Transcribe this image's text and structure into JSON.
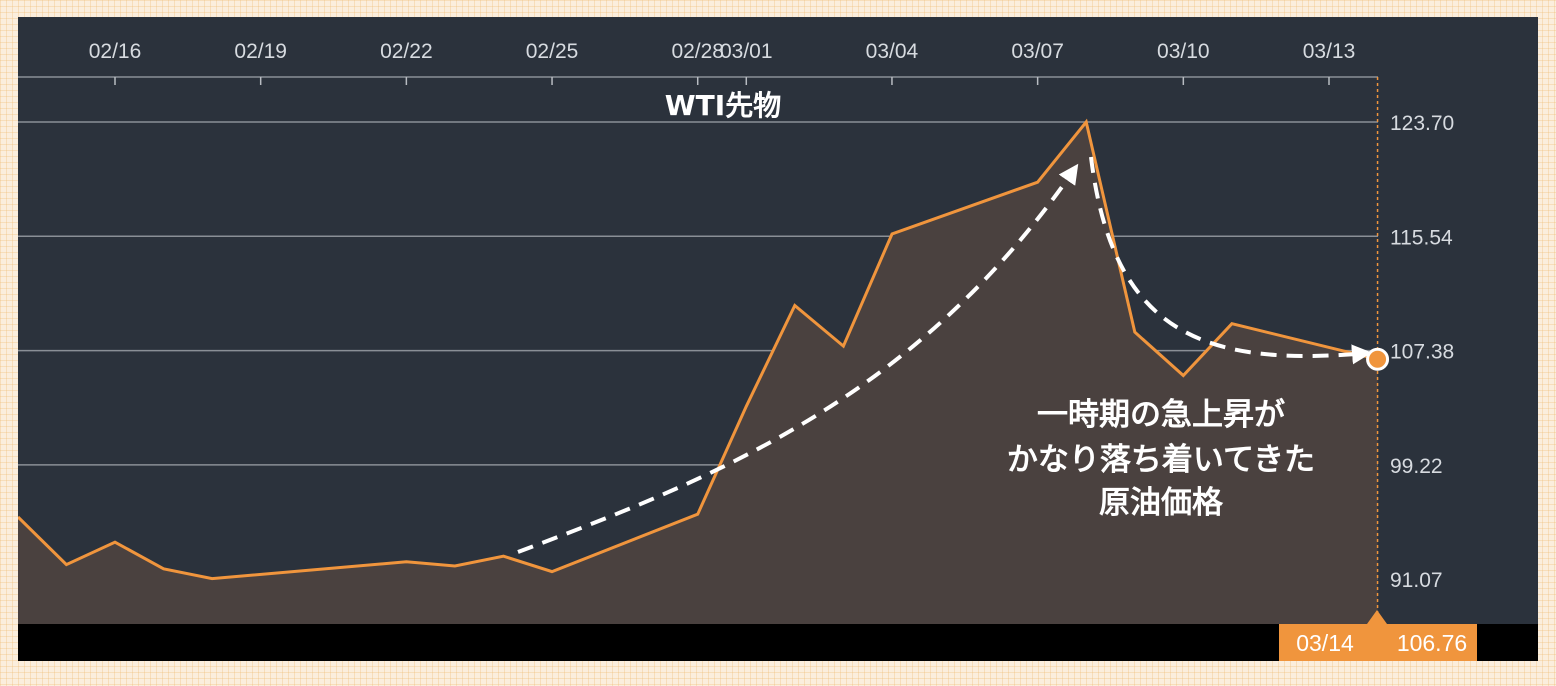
{
  "chart_data": {
    "type": "area",
    "title": "WTI先物",
    "x_tick_labels": [
      "02/16",
      "02/19",
      "02/22",
      "02/25",
      "02/28",
      "03/01",
      "03/04",
      "03/07",
      "03/10",
      "03/13"
    ],
    "y_tick_labels": [
      "123.70",
      "115.54",
      "107.38",
      "99.22",
      "91.07"
    ],
    "y_ticks": [
      123.7,
      115.54,
      107.38,
      99.22,
      91.07
    ],
    "ylim": [
      88.0,
      127.0
    ],
    "grid": "horizontal",
    "series": [
      {
        "x": [
          "02/14",
          "02/15",
          "02/16",
          "02/17",
          "02/18",
          "02/22",
          "02/23",
          "02/24",
          "02/25",
          "02/28",
          "03/01",
          "03/02",
          "03/03",
          "03/04",
          "03/07",
          "03/08",
          "03/09",
          "03/10",
          "03/11",
          "03/14"
        ],
        "values": [
          95.5,
          92.1,
          93.7,
          91.8,
          91.1,
          92.3,
          92.0,
          92.7,
          91.6,
          95.7,
          103.4,
          110.6,
          107.7,
          115.7,
          119.4,
          123.7,
          108.7,
          105.6,
          109.3,
          106.76
        ]
      }
    ],
    "annotations": {
      "lines": [
        "一時期の急上昇が",
        "かなり落ち着いてきた",
        "原油価格"
      ]
    },
    "last_point": {
      "date": "03/14",
      "value": "106.76"
    },
    "colors": {
      "background": "#2b323c",
      "line": "#f0953d",
      "area_fill": "#4a413f",
      "grid": "#8a8f96",
      "bottom_bar": "#000000",
      "badge": "#f0953d",
      "arrow": "#ffffff"
    }
  }
}
